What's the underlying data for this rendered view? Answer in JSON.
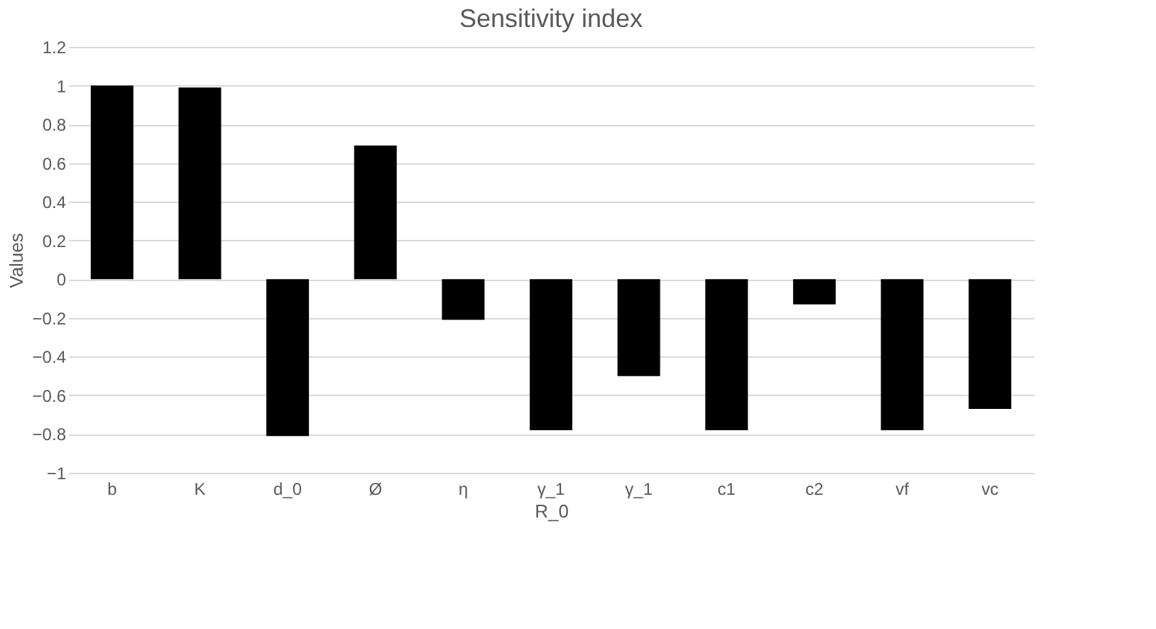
{
  "chart_data": {
    "type": "bar",
    "title": "Sensitivity index",
    "xlabel": "R_0",
    "ylabel": "Values",
    "categories": [
      "b",
      "K",
      "d_0",
      "Ø",
      "η",
      "γ_1",
      "γ_1",
      "c1",
      "c2",
      "vf",
      "vc"
    ],
    "values": [
      1.0,
      0.99,
      -0.81,
      0.69,
      -0.21,
      -0.78,
      -0.5,
      -0.78,
      -0.13,
      -0.78,
      -0.67
    ],
    "color": "#000000",
    "ylim": [
      -1,
      1.2
    ],
    "yticks": [
      -1,
      -0.8,
      -0.6,
      -0.4,
      -0.2,
      0,
      0.2,
      0.4,
      0.6,
      0.8,
      1,
      1.2
    ],
    "grid": "y"
  }
}
